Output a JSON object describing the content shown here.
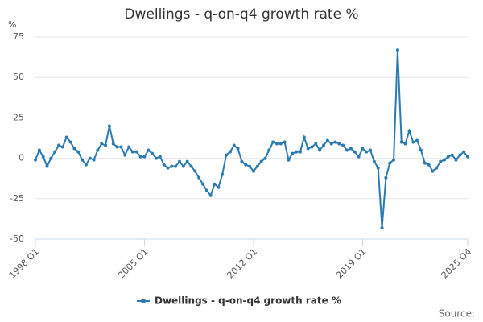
{
  "chart_data": {
    "type": "line",
    "title": "Dwellings - q-on-q4 growth rate %",
    "y_label": "%",
    "source": "Source:",
    "categories": [
      "1998 Q1",
      null,
      null,
      null,
      null,
      null,
      null,
      null,
      null,
      null,
      null,
      null,
      null,
      null,
      null,
      null,
      null,
      null,
      null,
      null,
      null,
      null,
      null,
      null,
      null,
      null,
      null,
      null,
      "2005 Q1",
      null,
      null,
      null,
      null,
      null,
      null,
      null,
      null,
      null,
      null,
      null,
      null,
      null,
      null,
      null,
      null,
      null,
      null,
      null,
      null,
      null,
      null,
      null,
      null,
      null,
      null,
      null,
      "2012 Q1",
      null,
      null,
      null,
      null,
      null,
      null,
      null,
      null,
      null,
      null,
      null,
      null,
      null,
      null,
      null,
      null,
      null,
      null,
      null,
      null,
      null,
      null,
      null,
      null,
      null,
      null,
      null,
      "2019 Q1",
      null,
      null,
      null,
      null,
      null,
      null,
      null,
      null,
      null,
      null,
      null,
      null,
      null,
      null,
      null,
      null,
      null,
      null,
      null,
      null,
      null,
      null,
      null,
      null,
      null,
      null,
      "2025 Q4"
    ],
    "series": [
      {
        "name": "Dwellings - q-on-q4 growth rate %",
        "color": "#2b7bb0",
        "values": [
          -1,
          5,
          1,
          -5,
          0,
          4,
          8,
          7,
          13,
          10,
          6,
          4,
          -1,
          -4,
          0,
          -1,
          5,
          9,
          8,
          20,
          9,
          7,
          7,
          2,
          7,
          4,
          4,
          1,
          1,
          5,
          3,
          0,
          1,
          -4,
          -6,
          -5,
          -5,
          -2,
          -5,
          -2,
          -5,
          -8,
          -12,
          -16,
          -20,
          -23,
          -16,
          -18,
          -10,
          2,
          4,
          8,
          6,
          -2,
          -4,
          -5,
          -8,
          -5,
          -2,
          0,
          5,
          10,
          9,
          9,
          10,
          -1,
          3,
          4,
          4,
          13,
          6,
          7,
          9,
          5,
          8,
          11,
          9,
          10,
          9,
          8,
          5,
          6,
          4,
          1,
          6,
          4,
          5,
          -2,
          -6,
          -43,
          -12,
          -3,
          -1,
          67,
          10,
          9,
          17,
          10,
          11,
          5,
          -3,
          -4,
          -8,
          -6,
          -2,
          -1,
          1,
          2,
          -1,
          2,
          4,
          1
        ]
      }
    ],
    "ylim": [
      -50,
      75
    ],
    "yticks": [
      -50,
      -25,
      0,
      25,
      50,
      75
    ],
    "grid": true,
    "legend": "bottom"
  }
}
